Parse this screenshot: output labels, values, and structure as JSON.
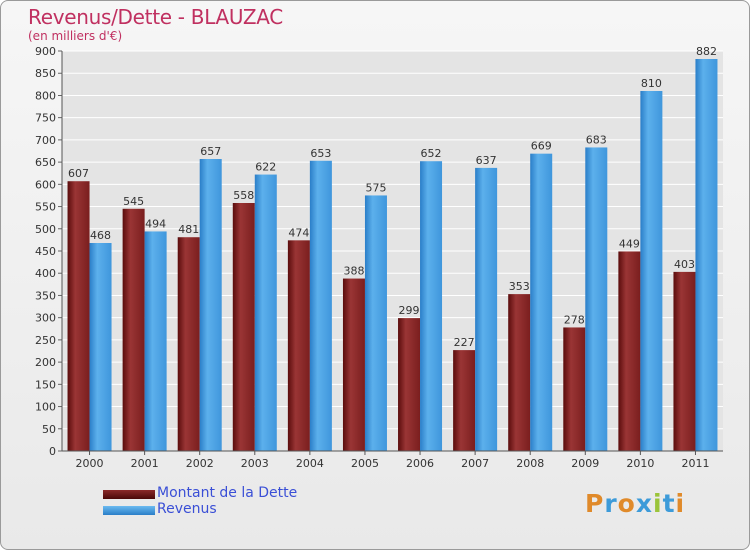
{
  "chart_data": {
    "type": "bar",
    "title": "Revenus/Dette - BLAUZAC",
    "subtitle": "(en milliers d'€)",
    "categories": [
      "2000",
      "2001",
      "2002",
      "2003",
      "2004",
      "2005",
      "2006",
      "2007",
      "2008",
      "2009",
      "2010",
      "2011"
    ],
    "series": [
      {
        "name": "Montant de la Dette",
        "color": "#8b2a2a",
        "values": [
          607,
          545,
          481,
          558,
          474,
          388,
          299,
          227,
          353,
          278,
          449,
          403
        ]
      },
      {
        "name": "Revenus",
        "color": "#4a9fe0",
        "values": [
          468,
          494,
          657,
          622,
          653,
          575,
          652,
          637,
          669,
          683,
          810,
          882
        ]
      }
    ],
    "ylim": [
      0,
      900
    ],
    "yticks": [
      0,
      50,
      100,
      150,
      200,
      250,
      300,
      350,
      400,
      450,
      500,
      550,
      600,
      650,
      700,
      750,
      800,
      850,
      900
    ],
    "grid": true,
    "legend": "bottom-left"
  },
  "logo": {
    "text": "Proxiti",
    "colors": [
      "#e08a2a",
      "#3d9bd9",
      "#e08a2a",
      "#3d9bd9",
      "#9bc43a",
      "#3d9bd9",
      "#e08a2a"
    ]
  }
}
